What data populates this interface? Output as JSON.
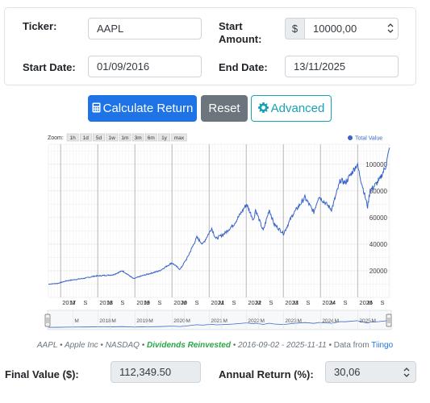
{
  "form": {
    "ticker_label": "Ticker:",
    "ticker_value": "AAPL",
    "start_amount_label_1": "Start",
    "start_amount_label_2": "Amount:",
    "currency_symbol": "$",
    "start_amount_value": "10000,00",
    "start_date_label": "Start Date:",
    "start_date_value": "01/09/2016",
    "end_date_label": "End Date:",
    "end_date_value": "13/11/2025"
  },
  "buttons": {
    "calculate_label": "Calculate Return",
    "reset_label": "Reset",
    "advanced_label": "Advanced"
  },
  "chart_data": {
    "type": "line",
    "zoom_label": "Zoom:",
    "zoom_buttons": [
      "1h",
      "1d",
      "5d",
      "1w",
      "1m",
      "3m",
      "6m",
      "1y",
      "max"
    ],
    "legend": "Total Value",
    "series": [
      {
        "name": "Total Value",
        "points": [
          [
            "2016-09-02",
            10000
          ],
          [
            "2016-12-01",
            10500
          ],
          [
            "2017-03-01",
            12500
          ],
          [
            "2017-06-01",
            13500
          ],
          [
            "2017-09-01",
            14500
          ],
          [
            "2017-12-01",
            16000
          ],
          [
            "2018-03-01",
            16500
          ],
          [
            "2018-06-01",
            17000
          ],
          [
            "2018-09-01",
            20000
          ],
          [
            "2018-12-20",
            14000
          ],
          [
            "2019-03-01",
            16000
          ],
          [
            "2019-06-01",
            18000
          ],
          [
            "2019-09-01",
            20000
          ],
          [
            "2019-12-31",
            26000
          ],
          [
            "2020-03-20",
            21000
          ],
          [
            "2020-06-01",
            30000
          ],
          [
            "2020-09-01",
            45000
          ],
          [
            "2020-10-30",
            40000
          ],
          [
            "2021-01-25",
            52000
          ],
          [
            "2021-03-08",
            44000
          ],
          [
            "2021-06-01",
            48000
          ],
          [
            "2021-09-01",
            55000
          ],
          [
            "2022-01-03",
            70000
          ],
          [
            "2022-03-14",
            58000
          ],
          [
            "2022-04-01",
            66000
          ],
          [
            "2022-06-16",
            50000
          ],
          [
            "2022-08-15",
            66000
          ],
          [
            "2022-10-01",
            55000
          ],
          [
            "2023-01-03",
            48000
          ],
          [
            "2023-04-01",
            62000
          ],
          [
            "2023-07-31",
            75000
          ],
          [
            "2023-10-27",
            64000
          ],
          [
            "2023-12-14",
            76000
          ],
          [
            "2024-04-19",
            66000
          ],
          [
            "2024-07-15",
            88000
          ],
          [
            "2024-09-01",
            86000
          ],
          [
            "2024-12-26",
            100000
          ],
          [
            "2025-04-08",
            68000
          ],
          [
            "2025-05-01",
            80000
          ],
          [
            "2025-08-01",
            88000
          ],
          [
            "2025-10-01",
            98000
          ],
          [
            "2025-11-11",
            112349.5
          ]
        ]
      }
    ],
    "y_ticks": [
      20000,
      40000,
      60000,
      80000,
      100000
    ],
    "y_range": [
      0,
      115000
    ],
    "x_range": [
      "2016-09-02",
      "2025-11-11"
    ],
    "x_ticks": [
      {
        "label": "2017",
        "date": "2017-01-01",
        "year": true
      },
      {
        "label": "M",
        "date": "2017-05-01",
        "year": false
      },
      {
        "label": "S",
        "date": "2017-09-01",
        "year": false
      },
      {
        "label": "2018",
        "date": "2018-01-01",
        "year": true
      },
      {
        "label": "M",
        "date": "2018-05-01",
        "year": false
      },
      {
        "label": "S",
        "date": "2018-09-01",
        "year": false
      },
      {
        "label": "2019",
        "date": "2019-01-01",
        "year": true
      },
      {
        "label": "M",
        "date": "2019-05-01",
        "year": false
      },
      {
        "label": "S",
        "date": "2019-09-01",
        "year": false
      },
      {
        "label": "2020",
        "date": "2020-01-01",
        "year": true
      },
      {
        "label": "M",
        "date": "2020-05-01",
        "year": false
      },
      {
        "label": "S",
        "date": "2020-09-01",
        "year": false
      },
      {
        "label": "2021",
        "date": "2021-01-01",
        "year": true
      },
      {
        "label": "M",
        "date": "2021-05-01",
        "year": false
      },
      {
        "label": "S",
        "date": "2021-09-01",
        "year": false
      },
      {
        "label": "2022",
        "date": "2022-01-01",
        "year": true
      },
      {
        "label": "M",
        "date": "2022-05-01",
        "year": false
      },
      {
        "label": "S",
        "date": "2022-09-01",
        "year": false
      },
      {
        "label": "2023",
        "date": "2023-01-01",
        "year": true
      },
      {
        "label": "M",
        "date": "2023-05-01",
        "year": false
      },
      {
        "label": "S",
        "date": "2023-09-01",
        "year": false
      },
      {
        "label": "2024",
        "date": "2024-01-01",
        "year": true
      },
      {
        "label": "M",
        "date": "2024-05-01",
        "year": false
      },
      {
        "label": "S",
        "date": "2024-09-01",
        "year": false
      },
      {
        "label": "2025",
        "date": "2025-01-01",
        "year": true
      },
      {
        "label": "M",
        "date": "2025-05-01",
        "year": false
      },
      {
        "label": "S",
        "date": "2025-09-01",
        "year": false
      }
    ],
    "navigator_ticks": [
      {
        "label": "M",
        "date": "2017-05-01"
      },
      {
        "label": "2018",
        "date": "2018-01-01"
      },
      {
        "label": "M",
        "date": "2018-05-01"
      },
      {
        "label": "2019",
        "date": "2019-01-01"
      },
      {
        "label": "M",
        "date": "2019-05-01"
      },
      {
        "label": "2020",
        "date": "2020-01-01"
      },
      {
        "label": "M",
        "date": "2020-05-01"
      },
      {
        "label": "2021",
        "date": "2021-01-01"
      },
      {
        "label": "M",
        "date": "2021-05-01"
      },
      {
        "label": "2022",
        "date": "2022-01-01"
      },
      {
        "label": "M",
        "date": "2022-05-01"
      },
      {
        "label": "2023",
        "date": "2023-01-01"
      },
      {
        "label": "M",
        "date": "2023-05-01"
      },
      {
        "label": "2024",
        "date": "2024-01-01"
      },
      {
        "label": "M",
        "date": "2024-05-01"
      },
      {
        "label": "2025",
        "date": "2025-01-01"
      },
      {
        "label": "M",
        "date": "2025-05-01"
      }
    ],
    "line_color": "#3b64c8",
    "grid": true,
    "legend_position": "top-right"
  },
  "caption": {
    "ticker": "AAPL",
    "sep1": " • ",
    "company": "Apple Inc",
    "sep2": " • ",
    "exchange": "NASDAQ",
    "sep3": " • ",
    "dividends": "Dividends Reinvested",
    "sep4": " • ",
    "range": " 2016-09-02 - 2025-11-11",
    "sep5": " • ",
    "data_from": "Data from ",
    "source": "Tiingo"
  },
  "results": {
    "final_value_label": "Final Value ($):",
    "final_value": "112,349.50",
    "annual_return_label": "Annual Return (%):",
    "annual_return": "30,06"
  },
  "colors": {
    "primary": "#1e74e6",
    "secondary": "#6c757d",
    "info": "#17a2b8",
    "success": "#28a745"
  },
  "icons": {
    "calculate": "calculator-icon",
    "advanced": "gear-icon"
  }
}
